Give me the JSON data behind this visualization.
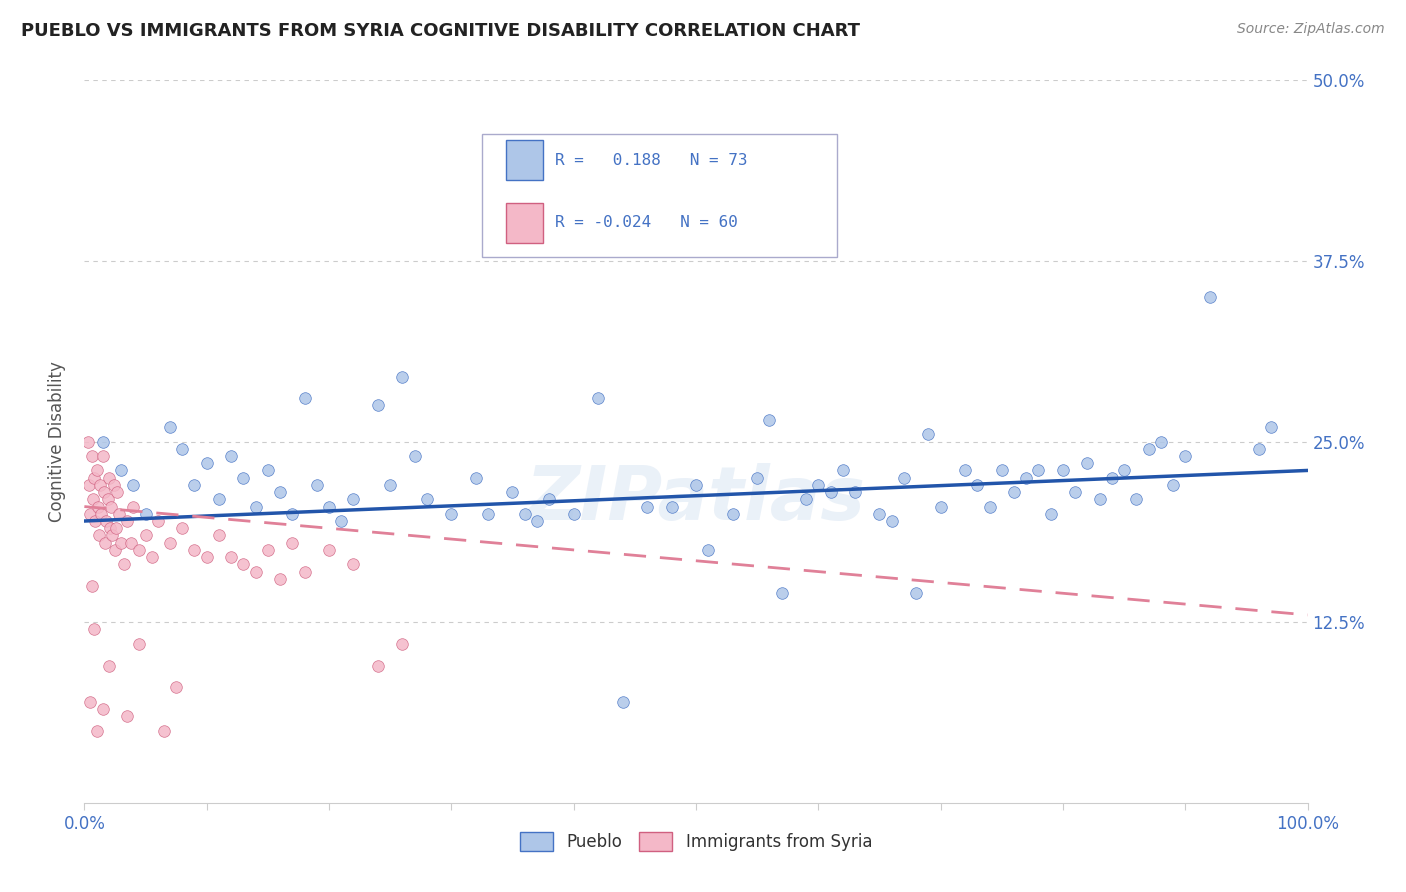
{
  "title": "PUEBLO VS IMMIGRANTS FROM SYRIA COGNITIVE DISABILITY CORRELATION CHART",
  "source": "Source: ZipAtlas.com",
  "ylabel": "Cognitive Disability",
  "legend_labels": [
    "Pueblo",
    "Immigrants from Syria"
  ],
  "pueblo_color": "#aec6e8",
  "pueblo_edge_color": "#4472c4",
  "syria_color": "#f4b8c8",
  "syria_edge_color": "#d06080",
  "pueblo_line_color": "#2255aa",
  "syria_line_color": "#e08098",
  "xmin": 0,
  "xmax": 100,
  "ymin": 0,
  "ymax": 50,
  "yticks": [
    12.5,
    25.0,
    37.5,
    50.0
  ],
  "background_color": "#ffffff",
  "grid_color": "#cccccc",
  "watermark": "ZIPatlas",
  "pueblo_scatter": [
    [
      1.5,
      25.0
    ],
    [
      3.0,
      23.0
    ],
    [
      4.0,
      22.0
    ],
    [
      5.0,
      20.0
    ],
    [
      7.0,
      26.0
    ],
    [
      8.0,
      24.5
    ],
    [
      9.0,
      22.0
    ],
    [
      10.0,
      23.5
    ],
    [
      11.0,
      21.0
    ],
    [
      12.0,
      24.0
    ],
    [
      13.0,
      22.5
    ],
    [
      14.0,
      20.5
    ],
    [
      15.0,
      23.0
    ],
    [
      16.0,
      21.5
    ],
    [
      17.0,
      20.0
    ],
    [
      18.0,
      28.0
    ],
    [
      19.0,
      22.0
    ],
    [
      20.0,
      20.5
    ],
    [
      21.0,
      19.5
    ],
    [
      22.0,
      21.0
    ],
    [
      24.0,
      27.5
    ],
    [
      25.0,
      22.0
    ],
    [
      26.0,
      29.5
    ],
    [
      27.0,
      24.0
    ],
    [
      28.0,
      21.0
    ],
    [
      30.0,
      20.0
    ],
    [
      32.0,
      22.5
    ],
    [
      33.0,
      20.0
    ],
    [
      35.0,
      21.5
    ],
    [
      36.0,
      20.0
    ],
    [
      37.0,
      19.5
    ],
    [
      38.0,
      21.0
    ],
    [
      40.0,
      20.0
    ],
    [
      42.0,
      28.0
    ],
    [
      44.0,
      7.0
    ],
    [
      46.0,
      20.5
    ],
    [
      48.0,
      20.5
    ],
    [
      50.0,
      22.0
    ],
    [
      51.0,
      17.5
    ],
    [
      53.0,
      20.0
    ],
    [
      55.0,
      22.5
    ],
    [
      56.0,
      26.5
    ],
    [
      57.0,
      14.5
    ],
    [
      59.0,
      21.0
    ],
    [
      60.0,
      22.0
    ],
    [
      61.0,
      21.5
    ],
    [
      62.0,
      23.0
    ],
    [
      63.0,
      21.5
    ],
    [
      65.0,
      20.0
    ],
    [
      66.0,
      19.5
    ],
    [
      67.0,
      22.5
    ],
    [
      68.0,
      14.5
    ],
    [
      69.0,
      25.5
    ],
    [
      70.0,
      20.5
    ],
    [
      72.0,
      23.0
    ],
    [
      73.0,
      22.0
    ],
    [
      74.0,
      20.5
    ],
    [
      75.0,
      23.0
    ],
    [
      76.0,
      21.5
    ],
    [
      77.0,
      22.5
    ],
    [
      78.0,
      23.0
    ],
    [
      79.0,
      20.0
    ],
    [
      80.0,
      23.0
    ],
    [
      81.0,
      21.5
    ],
    [
      82.0,
      23.5
    ],
    [
      83.0,
      21.0
    ],
    [
      84.0,
      22.5
    ],
    [
      85.0,
      23.0
    ],
    [
      86.0,
      21.0
    ],
    [
      87.0,
      24.5
    ],
    [
      88.0,
      25.0
    ],
    [
      89.0,
      22.0
    ],
    [
      90.0,
      24.0
    ],
    [
      92.0,
      35.0
    ],
    [
      96.0,
      24.5
    ],
    [
      97.0,
      26.0
    ]
  ],
  "syria_scatter": [
    [
      0.3,
      25.0
    ],
    [
      0.4,
      22.0
    ],
    [
      0.5,
      20.0
    ],
    [
      0.6,
      24.0
    ],
    [
      0.7,
      21.0
    ],
    [
      0.8,
      22.5
    ],
    [
      0.9,
      19.5
    ],
    [
      1.0,
      23.0
    ],
    [
      1.1,
      20.5
    ],
    [
      1.2,
      18.5
    ],
    [
      1.3,
      22.0
    ],
    [
      1.4,
      20.0
    ],
    [
      1.5,
      24.0
    ],
    [
      1.6,
      21.5
    ],
    [
      1.7,
      18.0
    ],
    [
      1.8,
      19.5
    ],
    [
      1.9,
      21.0
    ],
    [
      2.0,
      22.5
    ],
    [
      2.1,
      19.0
    ],
    [
      2.2,
      20.5
    ],
    [
      2.3,
      18.5
    ],
    [
      2.4,
      22.0
    ],
    [
      2.5,
      17.5
    ],
    [
      2.6,
      19.0
    ],
    [
      2.7,
      21.5
    ],
    [
      2.8,
      20.0
    ],
    [
      3.0,
      18.0
    ],
    [
      3.2,
      16.5
    ],
    [
      3.5,
      19.5
    ],
    [
      3.8,
      18.0
    ],
    [
      4.0,
      20.5
    ],
    [
      4.5,
      17.5
    ],
    [
      5.0,
      18.5
    ],
    [
      5.5,
      17.0
    ],
    [
      6.0,
      19.5
    ],
    [
      7.0,
      18.0
    ],
    [
      8.0,
      19.0
    ],
    [
      9.0,
      17.5
    ],
    [
      10.0,
      17.0
    ],
    [
      11.0,
      18.5
    ],
    [
      12.0,
      17.0
    ],
    [
      13.0,
      16.5
    ],
    [
      14.0,
      16.0
    ],
    [
      15.0,
      17.5
    ],
    [
      16.0,
      15.5
    ],
    [
      17.0,
      18.0
    ],
    [
      18.0,
      16.0
    ],
    [
      20.0,
      17.5
    ],
    [
      22.0,
      16.5
    ],
    [
      24.0,
      9.5
    ],
    [
      26.0,
      11.0
    ],
    [
      6.5,
      5.0
    ],
    [
      7.5,
      8.0
    ],
    [
      3.5,
      6.0
    ],
    [
      4.5,
      11.0
    ],
    [
      0.5,
      7.0
    ],
    [
      1.0,
      5.0
    ],
    [
      2.0,
      9.5
    ],
    [
      1.5,
      6.5
    ],
    [
      0.8,
      12.0
    ],
    [
      0.6,
      15.0
    ]
  ],
  "pueblo_regression": [
    0.0,
    100.0,
    19.5,
    23.0
  ],
  "syria_regression": [
    0.0,
    100.0,
    20.5,
    13.0
  ]
}
